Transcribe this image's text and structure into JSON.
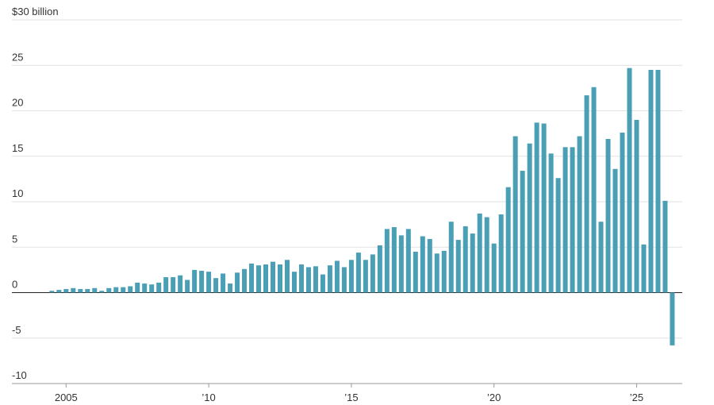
{
  "chart_data": {
    "type": "bar",
    "color": "#4a9fb5",
    "xlim": [
      2003.1,
      2026.6
    ],
    "xticks": [
      {
        "value": 2005,
        "label": "2005"
      },
      {
        "value": 2010,
        "label": "’10"
      },
      {
        "value": 2015,
        "label": "’15"
      },
      {
        "value": 2020,
        "label": "’20"
      },
      {
        "value": 2025,
        "label": "’25"
      }
    ],
    "ylim": [
      -10,
      30
    ],
    "yticks": [
      -10,
      -5,
      0,
      5,
      10,
      15,
      20,
      25,
      {
        "value": 30,
        "label": "$30 billion"
      }
    ],
    "grid": true,
    "x": [
      2004.5,
      2004.75,
      2005,
      2005.25,
      2005.5,
      2005.75,
      2006,
      2006.25,
      2006.5,
      2006.75,
      2007,
      2007.25,
      2007.5,
      2007.75,
      2008,
      2008.25,
      2008.5,
      2008.75,
      2009,
      2009.25,
      2009.5,
      2009.75,
      2010,
      2010.25,
      2010.5,
      2010.75,
      2011,
      2011.25,
      2011.5,
      2011.75,
      2012,
      2012.25,
      2012.5,
      2012.75,
      2013,
      2013.25,
      2013.5,
      2013.75,
      2014,
      2014.25,
      2014.5,
      2014.75,
      2015,
      2015.25,
      2015.5,
      2015.75,
      2016,
      2016.25,
      2016.5,
      2016.75,
      2017,
      2017.25,
      2017.5,
      2017.75,
      2018,
      2018.25,
      2018.5,
      2018.75,
      2019,
      2019.25,
      2019.5,
      2019.75,
      2020,
      2020.25,
      2020.5,
      2020.75,
      2021,
      2021.25,
      2021.5,
      2021.75,
      2022,
      2022.25,
      2022.5,
      2022.75,
      2023,
      2023.25,
      2023.5,
      2023.75,
      2024,
      2024.25,
      2024.5,
      2024.75,
      2025,
      2025.25,
      2025.5,
      2025.75,
      2026,
      2026.25
    ],
    "values": [
      0.2,
      0.3,
      0.4,
      0.5,
      0.4,
      0.4,
      0.5,
      0.2,
      0.5,
      0.6,
      0.6,
      0.7,
      1.1,
      1.0,
      0.9,
      1.1,
      1.7,
      1.7,
      1.9,
      1.4,
      2.5,
      2.4,
      2.3,
      1.6,
      2.1,
      1.0,
      2.2,
      2.6,
      3.2,
      3.0,
      3.1,
      3.4,
      3.1,
      3.6,
      2.3,
      3.1,
      2.8,
      2.9,
      2.0,
      3.0,
      3.5,
      2.8,
      3.6,
      4.4,
      3.6,
      4.2,
      5.2,
      7.0,
      7.2,
      6.3,
      7.0,
      4.5,
      6.2,
      5.9,
      4.3,
      4.6,
      7.8,
      5.8,
      7.3,
      6.5,
      8.7,
      8.3,
      5.4,
      8.6,
      11.6,
      17.2,
      13.4,
      16.4,
      18.7,
      18.6,
      15.3,
      12.6,
      16.0,
      16.0,
      17.2,
      21.7,
      22.6,
      7.8,
      16.9,
      13.6,
      17.6,
      24.7,
      19.0,
      5.3,
      24.5,
      24.5,
      10.1,
      -5.8
    ]
  }
}
